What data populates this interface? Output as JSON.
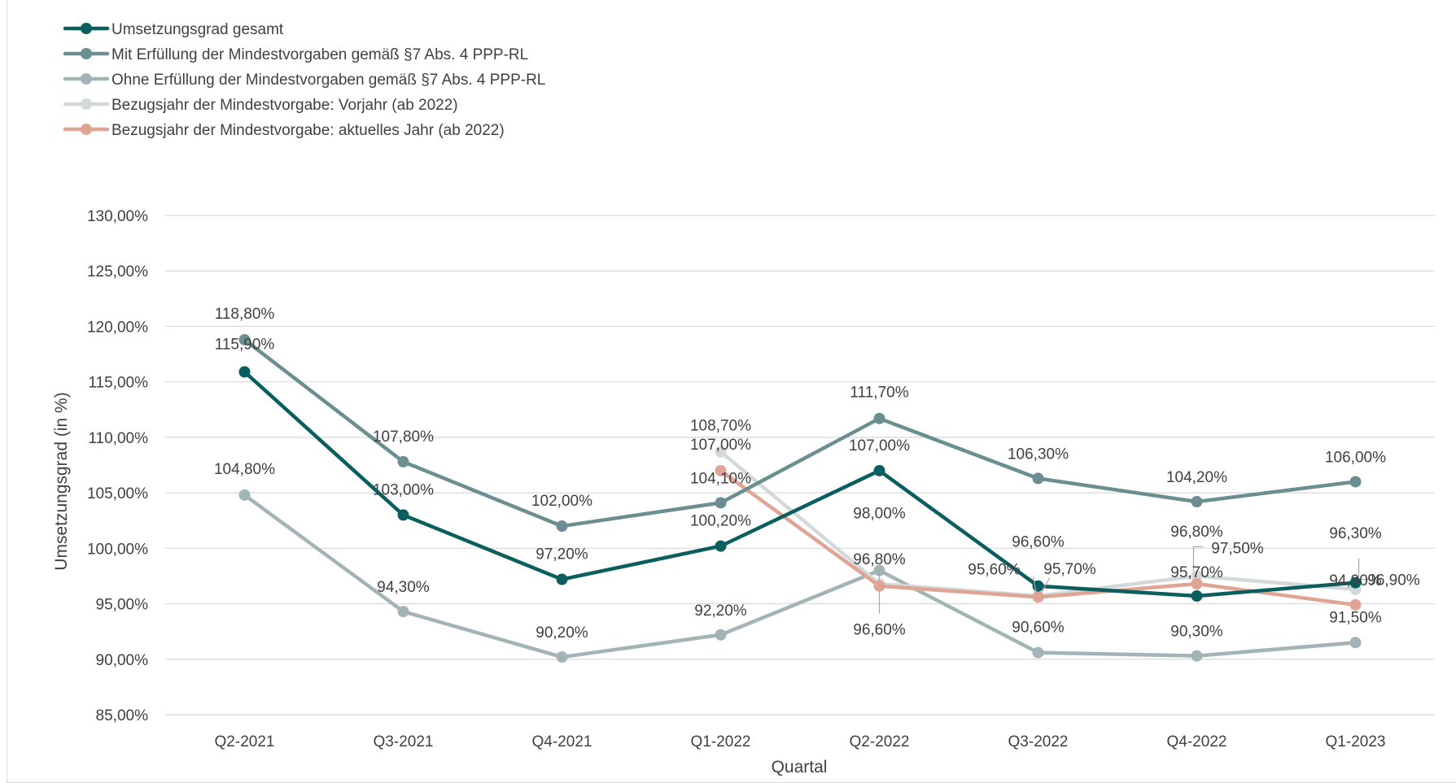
{
  "chart_data": {
    "type": "line",
    "xlabel": "Quartal",
    "ylabel": "Umsetzungsgrad (in %)",
    "ylim": [
      85,
      130
    ],
    "y_ticks": [
      "85,00%",
      "90,00%",
      "95,00%",
      "100,00%",
      "105,00%",
      "110,00%",
      "115,00%",
      "120,00%",
      "125,00%",
      "130,00%"
    ],
    "categories": [
      "Q2-2021",
      "Q3-2021",
      "Q4-2021",
      "Q1-2022",
      "Q2-2022",
      "Q3-2022",
      "Q4-2022",
      "Q1-2023"
    ],
    "grid": true,
    "legend_position": "top-left",
    "series": [
      {
        "name": "Umsetzungsgrad gesamt",
        "color": "#0b5e5e",
        "values": [
          115.9,
          103.0,
          97.2,
          100.2,
          107.0,
          96.6,
          95.7,
          96.9
        ],
        "labels": [
          "115,90%",
          "103,00%",
          "97,20%",
          "100,20%",
          "107,00%",
          "96,60%",
          "95,70%",
          "96,90%"
        ]
      },
      {
        "name": "Mit Erfüllung der Mindestvorgaben gemäß §7 Abs. 4 PPP-RL",
        "color": "#6b8e90",
        "values": [
          118.8,
          107.8,
          102.0,
          104.1,
          111.7,
          106.3,
          104.2,
          106.0
        ],
        "labels": [
          "118,80%",
          "107,80%",
          "102,00%",
          "104,10%",
          "111,70%",
          "106,30%",
          "104,20%",
          "106,00%"
        ]
      },
      {
        "name": "Ohne Erfüllung der Mindestvorgaben gemäß §7 Abs. 4 PPP-RL",
        "color": "#a3b4b6",
        "values": [
          104.8,
          94.3,
          90.2,
          92.2,
          98.0,
          90.6,
          90.3,
          91.5
        ],
        "labels": [
          "104,80%",
          "94,30%",
          "90,20%",
          "92,20%",
          "98,00%",
          "90,60%",
          "90,30%",
          "91,50%"
        ]
      },
      {
        "name": "Bezugsjahr der Mindestvorgabe: Vorjahr (ab 2022)",
        "color": "#d3d9da",
        "values": [
          null,
          null,
          null,
          108.7,
          96.8,
          95.7,
          97.5,
          96.3
        ],
        "labels": [
          "",
          "",
          "",
          "108,70%",
          "96,80%",
          "95,70%",
          "97,50%",
          "96,30%"
        ]
      },
      {
        "name": "Bezugsjahr der Mindestvorgabe: aktuelles Jahr (ab 2022)",
        "color": "#e0a495",
        "values": [
          null,
          null,
          null,
          107.0,
          96.6,
          95.6,
          96.8,
          94.9
        ],
        "labels": [
          "",
          "",
          "",
          "107,00%",
          "96,60%",
          "95,60%",
          "96,80%",
          "94,90%"
        ]
      }
    ]
  }
}
